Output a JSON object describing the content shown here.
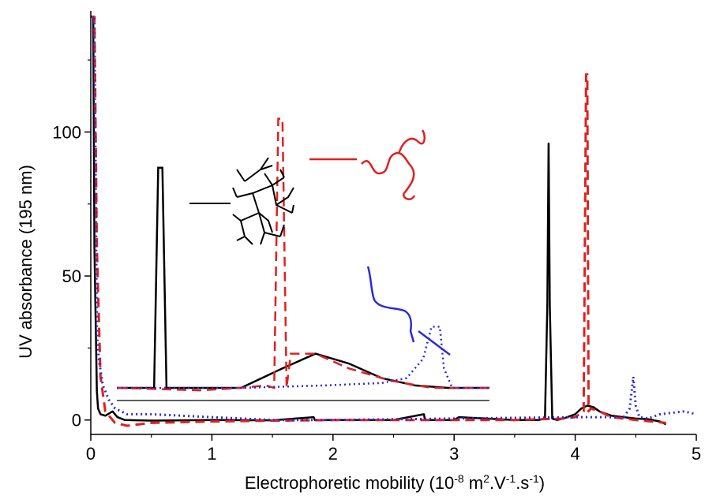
{
  "chart_data": {
    "type": "line",
    "title": "",
    "xlabel": "Electrophoretic mobility (10-8 m2.V-1.s-1)",
    "xlabel_parts": {
      "base": "Electrophoretic mobility (10",
      "exp1": "-8",
      "mid1": " m",
      "exp2": "2",
      "mid2": ".V",
      "exp3": "-1",
      "mid3": ".s",
      "exp4": "-1",
      "tail": ")"
    },
    "ylabel": "UV absorbance (195 nm)",
    "xlim": [
      0,
      5
    ],
    "ylim": [
      -5,
      142
    ],
    "x_ticks": [
      0,
      1,
      2,
      3,
      4,
      5
    ],
    "x_tick_labels": [
      "0",
      "1",
      "2",
      "3",
      "4",
      "5"
    ],
    "y_ticks": [
      0,
      50,
      100
    ],
    "y_tick_labels": [
      "0",
      "50",
      "100"
    ],
    "grid": false,
    "legend": "none",
    "series": [
      {
        "color": "#000000",
        "style": "solid",
        "x": [
          0.0,
          0.02,
          0.03,
          0.05,
          0.06,
          0.08,
          0.12,
          0.18,
          0.22,
          0.28,
          0.5,
          1.0,
          1.5,
          1.84,
          1.85,
          2.0,
          2.5,
          2.75,
          2.76,
          3.0,
          3.04,
          3.5,
          3.7,
          3.75,
          3.77,
          3.78,
          3.79,
          3.81,
          3.85,
          3.9,
          4.0,
          4.05,
          4.1,
          4.15,
          4.2,
          4.3,
          4.4,
          4.5,
          4.6,
          4.7,
          4.75
        ],
        "y": [
          140,
          140,
          60,
          10,
          4,
          2,
          1.5,
          3,
          1,
          0,
          -0.2,
          0,
          -0.1,
          1,
          0,
          0,
          0,
          2,
          0,
          0,
          1,
          0,
          0,
          0.5,
          40,
          96,
          40,
          0.5,
          0,
          0.5,
          2,
          4,
          5,
          4.5,
          3,
          1.5,
          1,
          0.5,
          0.3,
          -0.5,
          -1.5
        ]
      },
      {
        "color": "#e02020",
        "style": "dashed",
        "x": [
          0.0,
          0.03,
          0.05,
          0.08,
          0.12,
          0.2,
          0.3,
          0.5,
          1.0,
          2.0,
          3.0,
          3.5,
          3.9,
          4.0,
          4.07,
          4.09,
          4.1,
          4.11,
          4.13,
          4.2,
          4.3,
          4.5,
          4.75
        ],
        "y": [
          140,
          140,
          60,
          15,
          3,
          -1,
          -2,
          -1,
          -0.5,
          0,
          0,
          0,
          0.5,
          1,
          3,
          120,
          120,
          3,
          4,
          3,
          1,
          0,
          -1
        ]
      },
      {
        "color": "#2a2adc",
        "style": "dotted",
        "x": [
          0.0,
          0.03,
          0.05,
          0.07,
          0.1,
          0.15,
          0.2,
          0.3,
          0.5,
          1.0,
          1.5,
          2.0,
          3.0,
          4.0,
          4.2,
          4.4,
          4.45,
          4.48,
          4.5,
          4.53,
          4.6,
          4.7,
          4.8,
          4.9,
          5.0
        ],
        "y": [
          140,
          140,
          30,
          20,
          12,
          7,
          4,
          2,
          2,
          1,
          0,
          0,
          0.5,
          1,
          1,
          1,
          4,
          15,
          5,
          1,
          0.5,
          2,
          2.5,
          3,
          2
        ]
      }
    ],
    "inset": {
      "series": [
        {
          "color": "#000000",
          "style": "solid",
          "x": [
            0.0,
            0.3,
            0.45,
            0.5,
            0.55,
            0.6,
            0.65,
            1.0,
            1.5,
            2.0,
            2.4,
            2.8,
            3.2,
            3.6,
            4.0,
            4.5
          ],
          "y": [
            0,
            0,
            0,
            90,
            90,
            0,
            0,
            0,
            0,
            8,
            14,
            10,
            4,
            1,
            0,
            0
          ]
        },
        {
          "color": "#e02020",
          "style": "dashed",
          "x": [
            0.0,
            1.0,
            1.5,
            1.8,
            1.9,
            1.95,
            2.0,
            2.05,
            2.1,
            2.4,
            2.8,
            3.3,
            3.8,
            4.5
          ],
          "y": [
            0,
            -1,
            0,
            1,
            0,
            110,
            110,
            0,
            14,
            14,
            8,
            3,
            0,
            0
          ]
        },
        {
          "color": "#2a2adc",
          "style": "dotted",
          "x": [
            0.0,
            1.5,
            2.5,
            3.2,
            3.5,
            3.7,
            3.8,
            3.9,
            3.95,
            4.05,
            4.5
          ],
          "y": [
            0,
            0,
            1,
            2,
            4,
            12,
            25,
            25,
            8,
            0,
            0
          ]
        }
      ]
    }
  }
}
